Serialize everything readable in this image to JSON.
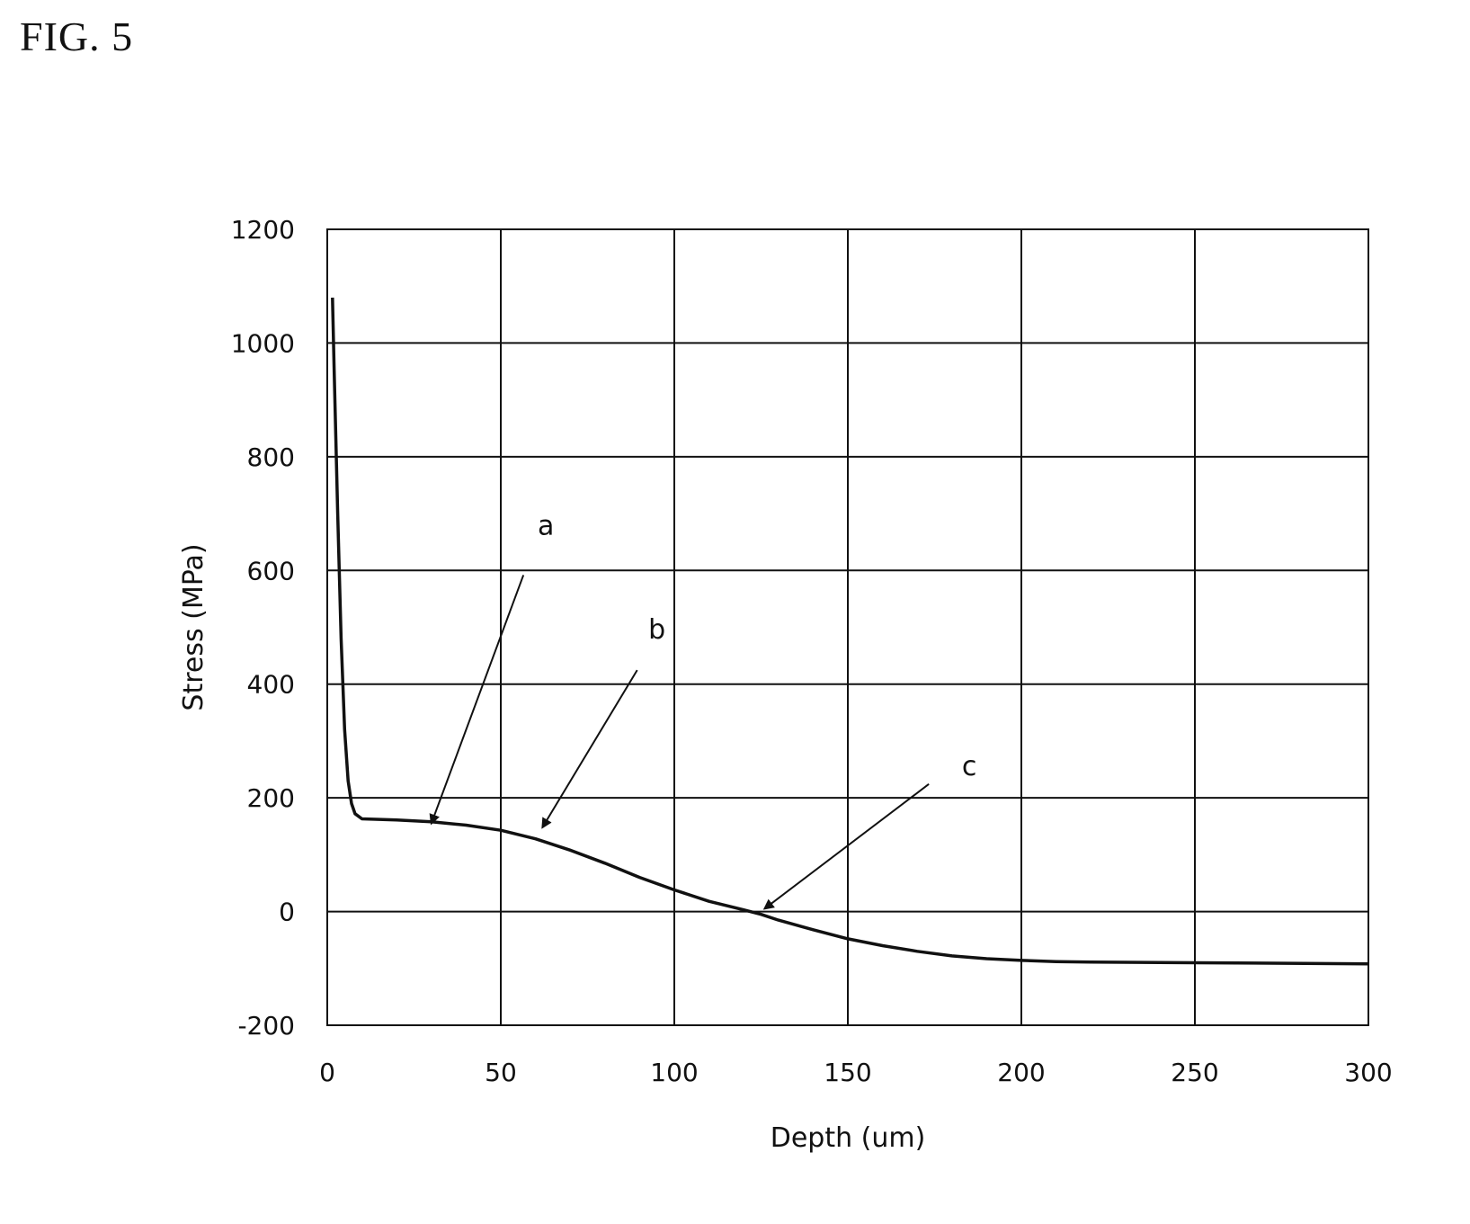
{
  "figure": {
    "label": "FIG. 5"
  },
  "chart_data": {
    "type": "line",
    "title": "",
    "xlabel": "Depth (um)",
    "ylabel": "Stress (MPa)",
    "xlim": [
      0,
      300
    ],
    "ylim": [
      -200,
      1200
    ],
    "x_ticks": [
      0,
      50,
      100,
      150,
      200,
      250,
      300
    ],
    "y_ticks": [
      -200,
      0,
      200,
      400,
      600,
      800,
      1000,
      1200
    ],
    "x_tick_labels": [
      "0",
      "50",
      "100",
      "150",
      "200",
      "250",
      "300"
    ],
    "y_tick_labels": [
      "-200",
      "0",
      "200",
      "400",
      "600",
      "800",
      "1000",
      "1200"
    ],
    "grid": true,
    "legend": "none",
    "series": [
      {
        "color": "#111111",
        "points": [
          [
            1.5,
            1080
          ],
          [
            2,
            950
          ],
          [
            3,
            700
          ],
          [
            4,
            480
          ],
          [
            5,
            320
          ],
          [
            6,
            230
          ],
          [
            7,
            190
          ],
          [
            8,
            172
          ],
          [
            10,
            163
          ],
          [
            20,
            161
          ],
          [
            30,
            158
          ],
          [
            40,
            152
          ],
          [
            50,
            143
          ],
          [
            60,
            128
          ],
          [
            70,
            108
          ],
          [
            80,
            85
          ],
          [
            90,
            60
          ],
          [
            100,
            38
          ],
          [
            110,
            18
          ],
          [
            120,
            3
          ],
          [
            125,
            -5
          ],
          [
            130,
            -15
          ],
          [
            140,
            -32
          ],
          [
            150,
            -48
          ],
          [
            160,
            -60
          ],
          [
            170,
            -70
          ],
          [
            180,
            -78
          ],
          [
            190,
            -83
          ],
          [
            200,
            -86
          ],
          [
            210,
            -88
          ],
          [
            220,
            -89
          ],
          [
            250,
            -90
          ],
          [
            300,
            -92
          ]
        ]
      }
    ],
    "annotations": [
      {
        "text": "a",
        "label_at": [
          63,
          663
        ],
        "arrow_tip": [
          30,
          155
        ]
      },
      {
        "text": "b",
        "label_at": [
          95,
          480
        ],
        "arrow_tip": [
          62,
          148
        ]
      },
      {
        "text": "c",
        "label_at": [
          185,
          240
        ],
        "arrow_tip": [
          126,
          5
        ]
      }
    ]
  }
}
